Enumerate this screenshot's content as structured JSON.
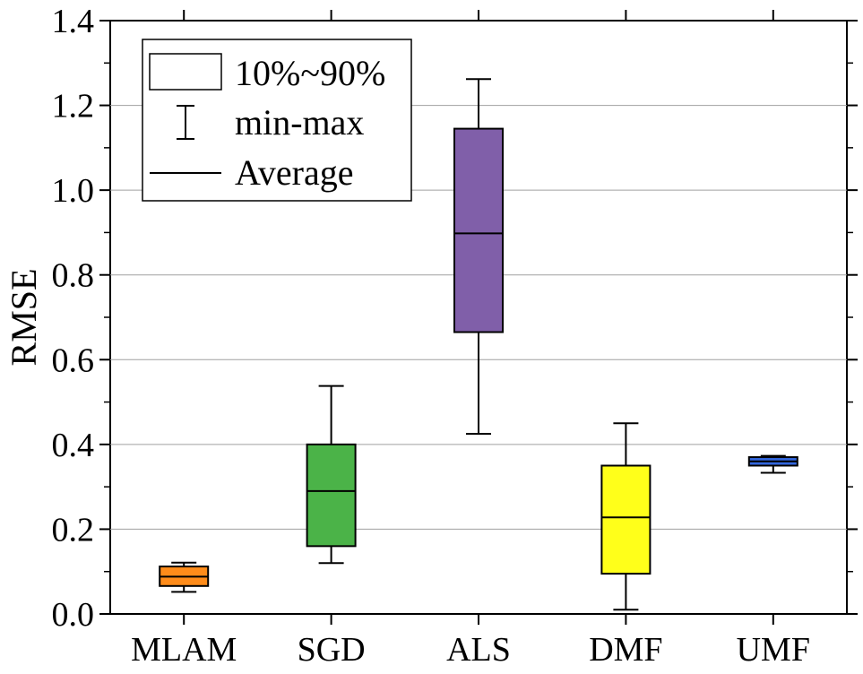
{
  "chart_data": {
    "type": "box",
    "title": "",
    "xlabel": "",
    "ylabel": "RMSE",
    "ylim": [
      0,
      1.4
    ],
    "yticks": [
      "0.0",
      "0.2",
      "0.4",
      "0.6",
      "0.8",
      "1.0",
      "1.2",
      "1.4"
    ],
    "grid": "horizontal",
    "legend_position": "top-left",
    "legend": {
      "box_label": "10%~90%",
      "whisker_label": "min-max",
      "mean_label": "Average"
    },
    "categories": [
      "MLAM",
      "SGD",
      "ALS",
      "DMF",
      "UMF"
    ],
    "boxes": [
      {
        "name": "MLAM",
        "min": 0.052,
        "p10": 0.066,
        "mean": 0.088,
        "p90": 0.112,
        "max": 0.121,
        "color": "#ff8c1a"
      },
      {
        "name": "SGD",
        "min": 0.12,
        "p10": 0.16,
        "mean": 0.29,
        "p90": 0.4,
        "max": 0.538,
        "color": "#4bb348"
      },
      {
        "name": "ALS",
        "min": 0.425,
        "p10": 0.665,
        "mean": 0.898,
        "p90": 1.145,
        "max": 1.262,
        "color": "#805fa9"
      },
      {
        "name": "DMF",
        "min": 0.01,
        "p10": 0.095,
        "mean": 0.228,
        "p90": 0.35,
        "max": 0.45,
        "color": "#ffff1a"
      },
      {
        "name": "UMF",
        "min": 0.333,
        "p10": 0.35,
        "mean": 0.36,
        "p90": 0.37,
        "max": 0.373,
        "color": "#3366dd"
      }
    ]
  }
}
